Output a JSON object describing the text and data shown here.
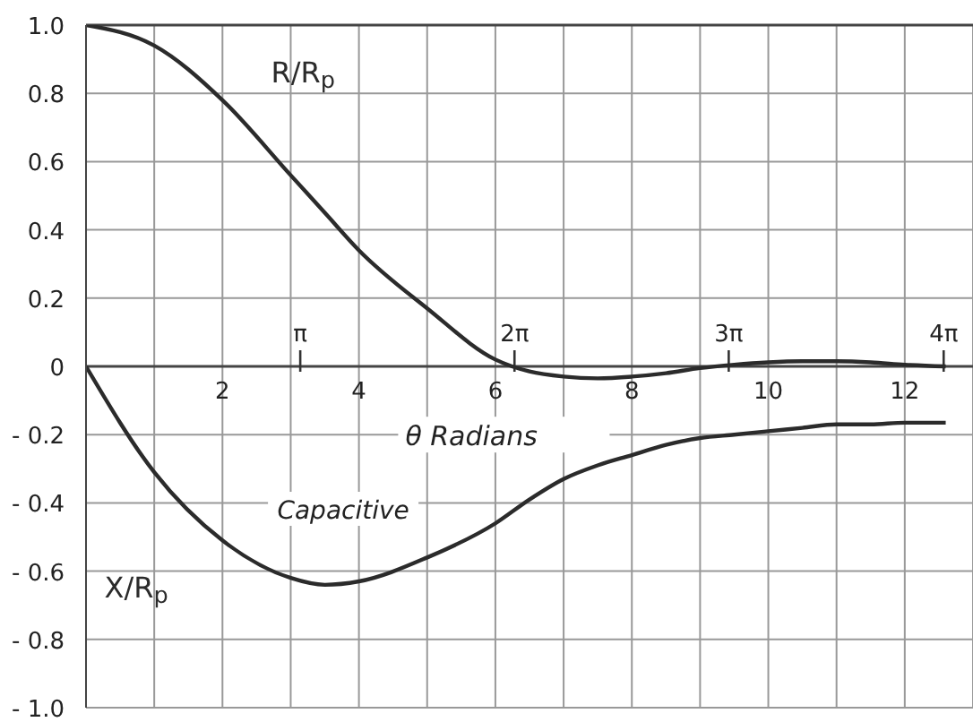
{
  "chart_data": {
    "type": "line",
    "xlabel": "θ Radians",
    "x": [
      0,
      1,
      2,
      3,
      3.5,
      4,
      5,
      6,
      6.5,
      7,
      7.5,
      8,
      8.5,
      9,
      9.5,
      10,
      10.5,
      11,
      11.5,
      12,
      12.6
    ],
    "series": [
      {
        "name": "R/R$_{p}$",
        "color": "#2b2b2b",
        "values": [
          1,
          0.94,
          0.78,
          0.56,
          0.45,
          0.34,
          0.17,
          0.02,
          -0.015,
          -0.03,
          -0.035,
          -0.03,
          -0.02,
          -0.005,
          0.005,
          0.012,
          0.015,
          0.015,
          0.012,
          0.005,
          0
        ]
      },
      {
        "name": "X/R$_{p}$",
        "color": "#2b2b2b",
        "values": [
          0,
          -0.31,
          -0.51,
          -0.62,
          -0.64,
          -0.63,
          -0.56,
          -0.46,
          -0.39,
          -0.33,
          -0.29,
          -0.26,
          -0.23,
          -0.21,
          -0.2,
          -0.19,
          -0.18,
          -0.17,
          -0.17,
          -0.165,
          -0.165
        ]
      }
    ],
    "xlim": [
      0,
      13
    ],
    "xticks": [
      {
        "value": 0,
        "label": null
      },
      {
        "value": 1,
        "label": null
      },
      2,
      {
        "value": 3,
        "label": null
      },
      4,
      {
        "value": 5,
        "label": null
      },
      6,
      {
        "value": 7,
        "label": null
      },
      8,
      {
        "value": 9,
        "label": null
      },
      10,
      {
        "value": 11,
        "label": null
      },
      12,
      {
        "value": 13,
        "label": null
      }
    ],
    "x2lim": [
      0,
      13
    ],
    "x2ticks": [
      {
        "value": 3.14,
        "label": "π"
      },
      {
        "value": 6.28,
        "label": "2π"
      },
      {
        "value": 9.42,
        "label": "3π"
      },
      {
        "value": 12.57,
        "label": "4π"
      }
    ],
    "ylim": [
      -1,
      1
    ],
    "yticks": [
      {
        "value": -1,
        "label": "- 1.0"
      },
      {
        "value": -0.8,
        "label": "- 0.8"
      },
      {
        "value": -0.6,
        "label": "- 0.6"
      },
      {
        "value": -0.4,
        "label": "- 0.4"
      },
      {
        "value": -0.2,
        "label": "- 0.2"
      },
      {
        "value": 0,
        "label": "0"
      },
      {
        "value": 0.2,
        "label": "0.2"
      },
      {
        "value": 0.4,
        "label": "0.4"
      },
      {
        "value": 0.6,
        "label": "0.6"
      },
      {
        "value": 0.8,
        "label": "0.8"
      },
      {
        "value": 1,
        "label": "1.0"
      }
    ],
    "annotations": [
      "Capacitive"
    ],
    "grid": true,
    "marker": "none",
    "line_style": "solid"
  }
}
